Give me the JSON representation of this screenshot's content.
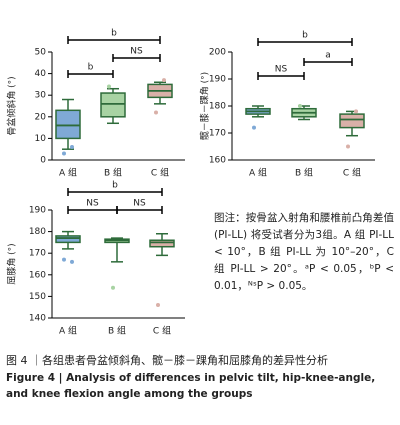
{
  "chart_data": [
    {
      "type": "box",
      "ylabel": "骨盆倾斜角 (°)",
      "categories": [
        "A 组",
        "B 组",
        "C 组"
      ],
      "colors": [
        "#7fa9d6",
        "#a8d3a3",
        "#d9b0a8"
      ],
      "boxes": [
        {
          "whisker_low": 5,
          "q1": 10,
          "median": 16,
          "q3": 23,
          "whisker_high": 28,
          "outliers": [
            3,
            6
          ]
        },
        {
          "whisker_low": 17,
          "q1": 20,
          "median": 26,
          "q3": 31,
          "whisker_high": 33,
          "outliers": [
            34
          ]
        },
        {
          "whisker_low": 26,
          "q1": 29,
          "median": 32,
          "q3": 35,
          "whisker_high": 36,
          "outliers": [
            22,
            37
          ]
        }
      ],
      "ylim": [
        0,
        50
      ],
      "yticks": [
        0,
        10,
        20,
        30,
        40,
        50
      ],
      "comparisons": [
        {
          "from": 0,
          "to": 2,
          "label": "b"
        },
        {
          "from": 1,
          "to": 2,
          "label": "NS"
        },
        {
          "from": 0,
          "to": 1,
          "label": "b"
        }
      ]
    },
    {
      "type": "box",
      "ylabel": "髋－膝－踝角 (°)",
      "categories": [
        "A 组",
        "B 组",
        "C 组"
      ],
      "colors": [
        "#7fa9d6",
        "#a8d3a3",
        "#d9b0a8"
      ],
      "boxes": [
        {
          "whisker_low": 176,
          "q1": 177,
          "median": 178,
          "q3": 179,
          "whisker_high": 180,
          "outliers": [
            172
          ]
        },
        {
          "whisker_low": 175,
          "q1": 176,
          "median": 177.5,
          "q3": 179,
          "whisker_high": 180,
          "outliers": [
            180
          ]
        },
        {
          "whisker_low": 169,
          "q1": 172,
          "median": 175,
          "q3": 177,
          "whisker_high": 178,
          "outliers": [
            165,
            178
          ]
        }
      ],
      "ylim": [
        160,
        200
      ],
      "yticks": [
        160,
        170,
        180,
        190,
        200
      ],
      "comparisons": [
        {
          "from": 0,
          "to": 2,
          "label": "b"
        },
        {
          "from": 1,
          "to": 2,
          "label": "a"
        },
        {
          "from": 0,
          "to": 1,
          "label": "NS"
        }
      ]
    },
    {
      "type": "box",
      "ylabel": "屈膝角 (°)",
      "categories": [
        "A 组",
        "B 组",
        "C 组"
      ],
      "colors": [
        "#7fa9d6",
        "#a8d3a3",
        "#d9b0a8"
      ],
      "boxes": [
        {
          "whisker_low": 172,
          "q1": 175,
          "median": 177,
          "q3": 178,
          "whisker_high": 180,
          "outliers": [
            167,
            166
          ]
        },
        {
          "whisker_low": 166,
          "q1": 175,
          "median": 176,
          "q3": 176.5,
          "whisker_high": 177,
          "outliers": [
            154
          ]
        },
        {
          "whisker_low": 169,
          "q1": 173,
          "median": 175,
          "q3": 176,
          "whisker_high": 179,
          "outliers": [
            146
          ]
        }
      ],
      "ylim": [
        140,
        190
      ],
      "yticks": [
        140,
        150,
        160,
        170,
        180,
        190
      ],
      "comparisons": [
        {
          "from": 0,
          "to": 2,
          "label": "b"
        },
        {
          "from": 0,
          "to": 1,
          "label": "NS"
        },
        {
          "from": 1,
          "to": 2,
          "label": "NS"
        }
      ]
    }
  ],
  "note": "图注：按骨盆入射角和腰椎前凸角差值 (PI-LL) 将受试者分为3组。A 组 PI-LL < 10°，B 组 PI-LL 为 10°–20°，C 组 PI-LL > 20°。ᵃP < 0.05，ᵇP < 0.01，ᴺˢP > 0.05。",
  "caption": {
    "zh": "图 4 ｜各组患者骨盆倾斜角、髋－膝－踝角和屈膝角的差异性分析",
    "en": "Figure 4  |  Analysis of differences in pelvic tilt, hip-knee-angle, and knee flexion angle among the groups"
  }
}
